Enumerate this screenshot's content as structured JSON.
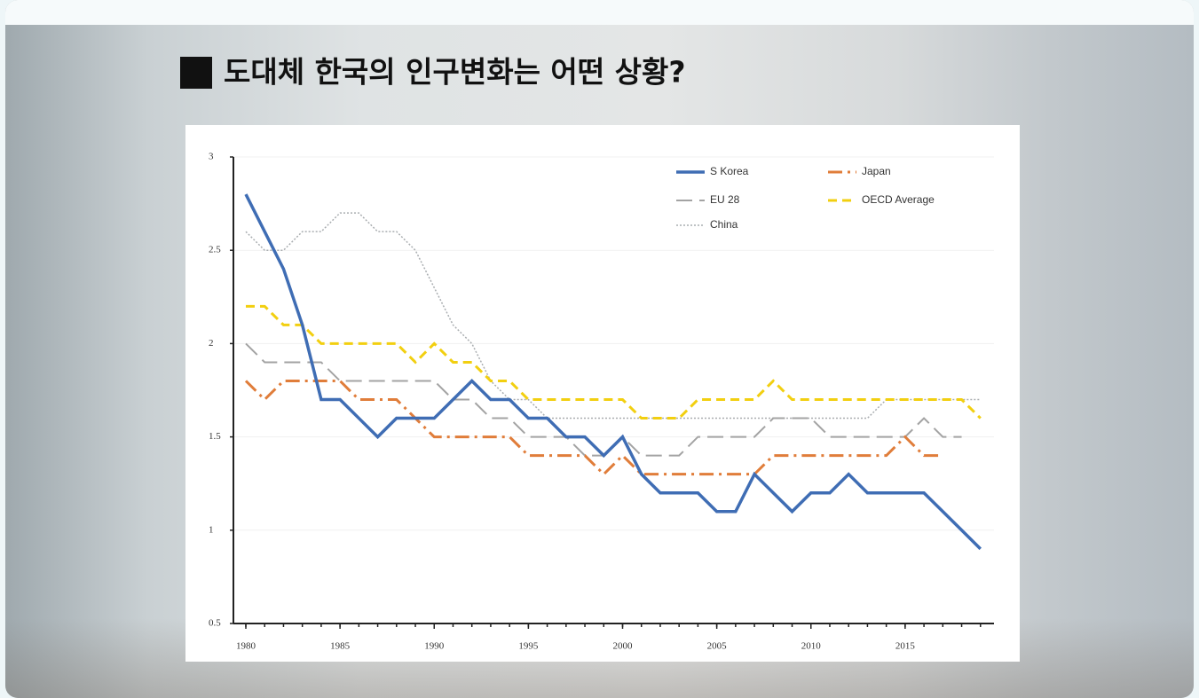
{
  "chart_data": {
    "type": "line",
    "title": "도대체 한국의 인구변화는 어떤 상황?",
    "x": [
      1980,
      1981,
      1982,
      1983,
      1984,
      1985,
      1986,
      1987,
      1988,
      1989,
      1990,
      1991,
      1992,
      1993,
      1994,
      1995,
      1996,
      1997,
      1998,
      1999,
      2000,
      2001,
      2002,
      2003,
      2004,
      2005,
      2006,
      2007,
      2008,
      2009,
      2010,
      2011,
      2012,
      2013,
      2014,
      2015,
      2016,
      2017,
      2018,
      2019
    ],
    "xlim": [
      1980,
      2020
    ],
    "xticks": [
      1980,
      1985,
      1990,
      1995,
      2000,
      2005,
      2010,
      2015
    ],
    "ylim": [
      0.5,
      3
    ],
    "yticks": [
      0.5,
      1,
      1.5,
      2,
      2.5,
      3
    ],
    "series": [
      {
        "name": "S Korea",
        "color": "#3f6db4",
        "style": "solid",
        "values": [
          2.8,
          2.6,
          2.4,
          2.1,
          1.7,
          1.7,
          1.6,
          1.5,
          1.6,
          1.6,
          1.6,
          1.7,
          1.8,
          1.7,
          1.7,
          1.6,
          1.6,
          1.5,
          1.5,
          1.4,
          1.5,
          1.3,
          1.2,
          1.2,
          1.2,
          1.1,
          1.1,
          1.3,
          1.2,
          1.1,
          1.2,
          1.2,
          1.3,
          1.2,
          1.2,
          1.2,
          1.2,
          1.1,
          1.0,
          0.9
        ]
      },
      {
        "name": "Japan",
        "color": "#e07d3a",
        "style": "dashdot",
        "values": [
          1.8,
          1.7,
          1.8,
          1.8,
          1.8,
          1.8,
          1.7,
          1.7,
          1.7,
          1.6,
          1.5,
          1.5,
          1.5,
          1.5,
          1.5,
          1.4,
          1.4,
          1.4,
          1.4,
          1.3,
          1.4,
          1.3,
          1.3,
          1.3,
          1.3,
          1.3,
          1.3,
          1.3,
          1.4,
          1.4,
          1.4,
          1.4,
          1.4,
          1.4,
          1.4,
          1.5,
          1.4,
          1.4,
          null,
          null
        ]
      },
      {
        "name": "EU 28",
        "color": "#a3a3a3",
        "style": "longdash",
        "values": [
          2.0,
          1.9,
          1.9,
          1.9,
          1.9,
          1.8,
          1.8,
          1.8,
          1.8,
          1.8,
          1.8,
          1.7,
          1.7,
          1.6,
          1.6,
          1.5,
          1.5,
          1.5,
          1.4,
          1.4,
          1.5,
          1.4,
          1.4,
          1.4,
          1.5,
          1.5,
          1.5,
          1.5,
          1.6,
          1.6,
          1.6,
          1.5,
          1.5,
          1.5,
          1.5,
          1.5,
          1.6,
          1.5,
          1.5,
          null
        ]
      },
      {
        "name": "OECD Average",
        "color": "#f2cf10",
        "style": "dash",
        "values": [
          2.2,
          2.2,
          2.1,
          2.1,
          2.0,
          2.0,
          2.0,
          2.0,
          2.0,
          1.9,
          2.0,
          1.9,
          1.9,
          1.8,
          1.8,
          1.7,
          1.7,
          1.7,
          1.7,
          1.7,
          1.7,
          1.6,
          1.6,
          1.6,
          1.7,
          1.7,
          1.7,
          1.7,
          1.8,
          1.7,
          1.7,
          1.7,
          1.7,
          1.7,
          1.7,
          1.7,
          1.7,
          1.7,
          1.7,
          1.6
        ]
      },
      {
        "name": "China",
        "color": "#a9adb0",
        "style": "dot",
        "values": [
          2.6,
          2.5,
          2.5,
          2.6,
          2.6,
          2.7,
          2.7,
          2.6,
          2.6,
          2.5,
          2.3,
          2.1,
          2.0,
          1.8,
          1.7,
          1.7,
          1.6,
          1.6,
          1.6,
          1.6,
          1.6,
          1.6,
          1.6,
          1.6,
          1.6,
          1.6,
          1.6,
          1.6,
          1.6,
          1.6,
          1.6,
          1.6,
          1.6,
          1.6,
          1.7,
          1.7,
          1.7,
          1.7,
          1.7,
          1.7
        ]
      }
    ]
  }
}
